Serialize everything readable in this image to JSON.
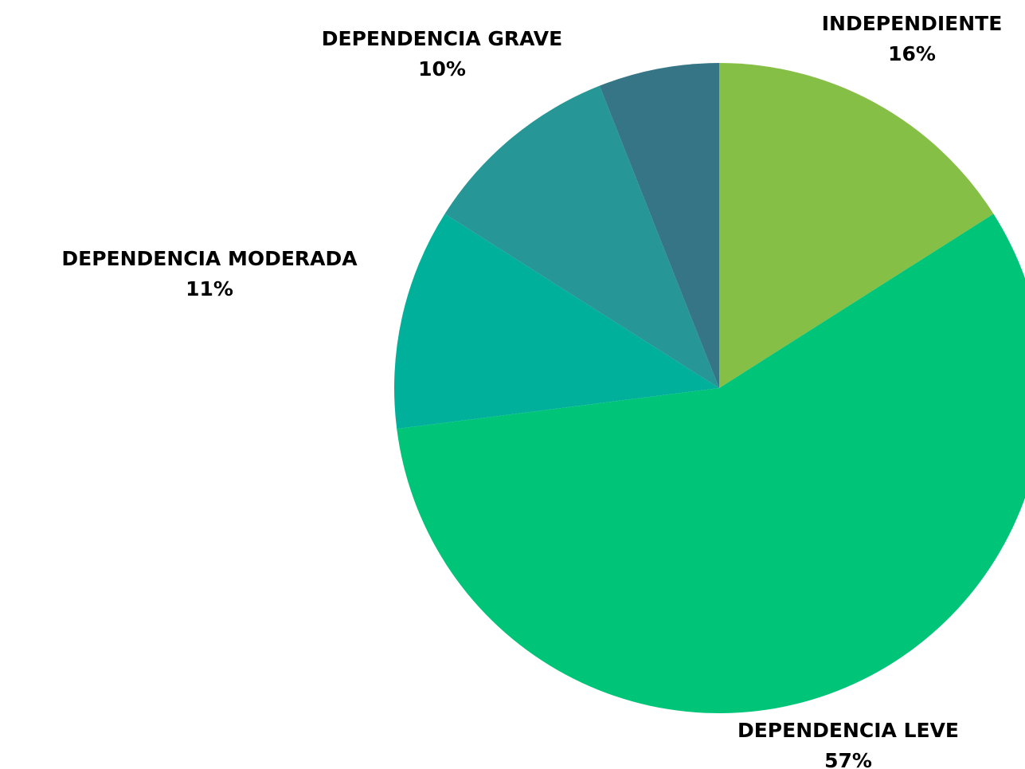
{
  "chart_data": {
    "type": "pie",
    "categories": [
      "INDEPENDIENTE",
      "DEPENDENCIA LEVE",
      "DEPENDENCIA MODERADA",
      "DEPENDENCIA GRAVE",
      null
    ],
    "values": [
      16,
      57,
      11,
      10,
      6
    ],
    "value_labels": [
      "16%",
      "57%",
      "11%",
      "10%",
      null
    ],
    "colors": [
      "#86bf45",
      "#00c578",
      "#00b09b",
      "#279696",
      "#357586"
    ]
  }
}
